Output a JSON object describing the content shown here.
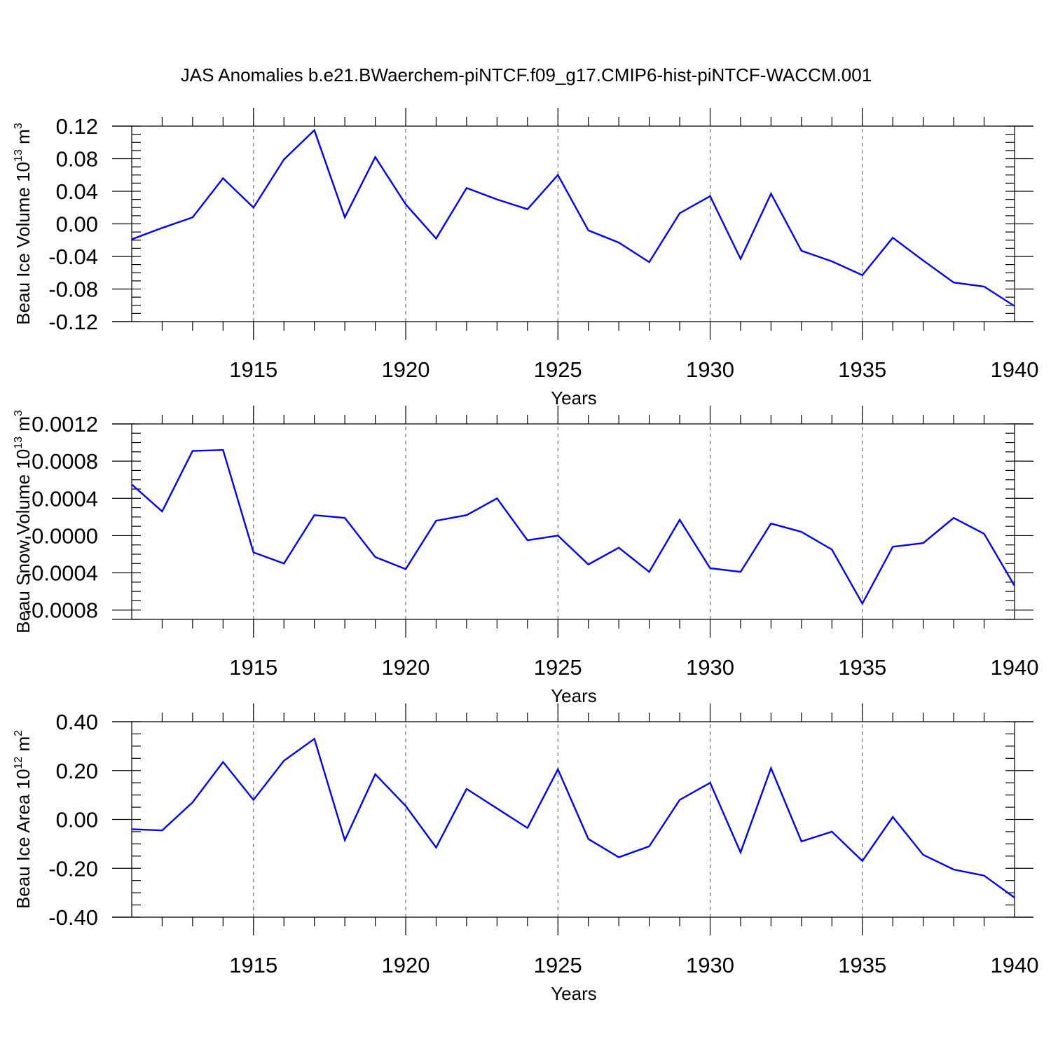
{
  "title": "JAS Anomalies b.e21.BWaerchem-piNTCF.f09_g17.CMIP6-hist-piNTCF-WACCM.001",
  "colors": {
    "line": "#0000ff",
    "axes": "#000000",
    "grid": "#555555"
  },
  "chart_data": [
    {
      "type": "line",
      "title": "",
      "xlabel": "Years",
      "ylabel": "Beau Ice Volume 10",
      "ylabel_sup1": "13",
      "ylabel_mid": " m",
      "ylabel_sup2": "3",
      "xlim": [
        1911,
        1940
      ],
      "ylim": [
        -0.12,
        0.12
      ],
      "xticks": [
        1915,
        1920,
        1925,
        1930,
        1935,
        1940
      ],
      "xtick_labels": [
        "1915",
        "1920",
        "1925",
        "1930",
        "1935",
        "1940"
      ],
      "yticks": [
        0.12,
        0.08,
        0.04,
        0.0,
        -0.04,
        -0.08,
        -0.12
      ],
      "ytick_labels": [
        "0.12",
        "0.08",
        "0.04",
        "0.00",
        "-0.04",
        "-0.08",
        "-0.12"
      ],
      "grid": "vertical dashed at major x ticks",
      "x": [
        1911,
        1912,
        1913,
        1914,
        1915,
        1916,
        1917,
        1918,
        1919,
        1920,
        1921,
        1922,
        1923,
        1924,
        1925,
        1926,
        1927,
        1928,
        1929,
        1930,
        1931,
        1932,
        1933,
        1934,
        1935,
        1936,
        1937,
        1938,
        1939,
        1940
      ],
      "series": [
        {
          "values": [
            -0.019,
            -0.005,
            0.008,
            0.056,
            0.02,
            0.079,
            0.115,
            0.008,
            0.082,
            0.024,
            -0.018,
            0.044,
            0.03,
            0.018,
            0.06,
            -0.008,
            -0.023,
            -0.047,
            0.013,
            0.034,
            -0.043,
            0.037,
            -0.033,
            -0.046,
            -0.063,
            -0.017,
            -0.045,
            -0.072,
            -0.077,
            -0.101
          ]
        }
      ]
    },
    {
      "type": "line",
      "title": "",
      "xlabel": "Years",
      "ylabel": "Beau Snow Volume 10",
      "ylabel_sup1": "13",
      "ylabel_mid": " m",
      "ylabel_sup2": "3",
      "xlim": [
        1911,
        1940
      ],
      "ylim": [
        -0.0009,
        0.0012
      ],
      "xticks": [
        1915,
        1920,
        1925,
        1930,
        1935,
        1940
      ],
      "xtick_labels": [
        "1915",
        "1920",
        "1925",
        "1930",
        "1935",
        "1940"
      ],
      "yticks": [
        0.0012,
        0.0008,
        0.0004,
        0.0,
        -0.0004,
        -0.0008
      ],
      "ytick_labels": [
        "0.0012",
        "0.0008",
        "0.0004",
        "-0.0000",
        "-0.0004",
        "-0.0008"
      ],
      "grid": "vertical dashed at major x ticks",
      "x": [
        1911,
        1912,
        1913,
        1914,
        1915,
        1916,
        1917,
        1918,
        1919,
        1920,
        1921,
        1922,
        1923,
        1924,
        1925,
        1926,
        1927,
        1928,
        1929,
        1930,
        1931,
        1932,
        1933,
        1934,
        1935,
        1936,
        1937,
        1938,
        1939,
        1940
      ],
      "series": [
        {
          "values": [
            0.00055,
            0.00026,
            0.00091,
            0.00092,
            -0.00018,
            -0.0003,
            0.00022,
            0.00019,
            -0.00023,
            -0.00036,
            0.00016,
            0.00022,
            0.0004,
            -5e-05,
            0.0,
            -0.00031,
            -0.00013,
            -0.00039,
            0.00017,
            -0.00035,
            -0.00039,
            0.00013,
            4e-05,
            -0.00015,
            -0.00073,
            -0.00012,
            -8e-05,
            0.00019,
            2e-05,
            -0.00054
          ]
        }
      ]
    },
    {
      "type": "line",
      "title": "",
      "xlabel": "Years",
      "ylabel": "Beau Ice Area 10",
      "ylabel_sup1": "12",
      "ylabel_mid": " m",
      "ylabel_sup2": "2",
      "xlim": [
        1911,
        1940
      ],
      "ylim": [
        -0.4,
        0.4
      ],
      "xticks": [
        1915,
        1920,
        1925,
        1930,
        1935,
        1940
      ],
      "xtick_labels": [
        "1915",
        "1920",
        "1925",
        "1930",
        "1935",
        "1940"
      ],
      "yticks": [
        0.4,
        0.2,
        0.0,
        -0.2,
        -0.4
      ],
      "ytick_labels": [
        "0.40",
        "0.20",
        "0.00",
        "-0.20",
        "-0.40"
      ],
      "grid": "vertical dashed at major x ticks",
      "x": [
        1911,
        1912,
        1913,
        1914,
        1915,
        1916,
        1917,
        1918,
        1919,
        1920,
        1921,
        1922,
        1923,
        1924,
        1925,
        1926,
        1927,
        1928,
        1929,
        1930,
        1931,
        1932,
        1933,
        1934,
        1935,
        1936,
        1937,
        1938,
        1939,
        1940
      ],
      "series": [
        {
          "values": [
            -0.04,
            -0.045,
            0.07,
            0.235,
            0.08,
            0.24,
            0.33,
            -0.085,
            0.185,
            0.055,
            -0.115,
            0.125,
            0.045,
            -0.035,
            0.205,
            -0.08,
            -0.155,
            -0.11,
            0.08,
            0.15,
            -0.135,
            0.21,
            -0.09,
            -0.05,
            -0.17,
            0.01,
            -0.145,
            -0.205,
            -0.23,
            -0.32
          ]
        }
      ]
    }
  ]
}
